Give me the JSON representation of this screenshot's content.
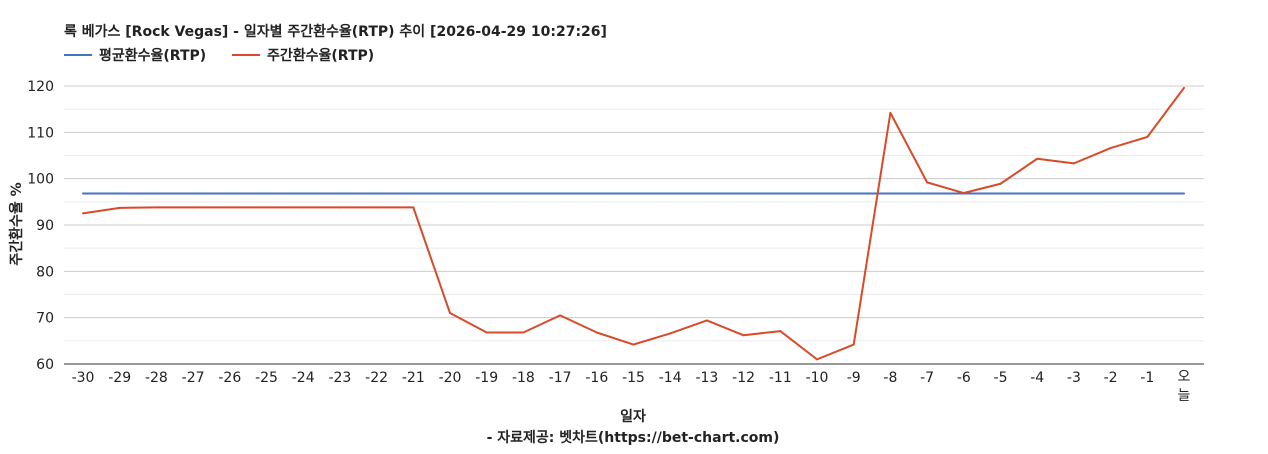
{
  "chart_data": {
    "type": "line",
    "title": "록 베가스 [Rock Vegas] - 일자별 주간환수율(RTP) 추이 [2026-04-29 10:27:26]",
    "xlabel": "일자",
    "ylabel": "주간환수율 %",
    "source": "- 자료제공: 벳차트(https://bet-chart.com)",
    "ylim": [
      60,
      120
    ],
    "yticks": [
      "60",
      "70",
      "80",
      "90",
      "100",
      "110",
      "120"
    ],
    "categories": [
      "-30",
      "-29",
      "-28",
      "-27",
      "-26",
      "-25",
      "-24",
      "-23",
      "-22",
      "-21",
      "-20",
      "-19",
      "-18",
      "-17",
      "-16",
      "-15",
      "-14",
      "-13",
      "-12",
      "-11",
      "-10",
      "-9",
      "-8",
      "-7",
      "-6",
      "-5",
      "-4",
      "-3",
      "-2",
      "-1",
      "오늘"
    ],
    "legend_position": "top-left",
    "grid": true,
    "series": [
      {
        "name": "평균환수율(RTP)",
        "color": "#4472c4",
        "values": [
          96.8,
          96.8,
          96.8,
          96.8,
          96.8,
          96.8,
          96.8,
          96.8,
          96.8,
          96.8,
          96.8,
          96.8,
          96.8,
          96.8,
          96.8,
          96.8,
          96.8,
          96.8,
          96.8,
          96.8,
          96.8,
          96.8,
          96.8,
          96.8,
          96.8,
          96.8,
          96.8,
          96.8,
          96.8,
          96.8,
          96.8
        ]
      },
      {
        "name": "주간환수율(RTP)",
        "color": "#d84a2a",
        "values": [
          92.5,
          93.7,
          93.8,
          93.8,
          93.8,
          93.8,
          93.8,
          93.8,
          93.8,
          93.8,
          71.0,
          66.8,
          66.8,
          70.5,
          66.8,
          64.2,
          66.6,
          69.4,
          66.2,
          67.1,
          61.0,
          64.2,
          114.2,
          99.2,
          96.9,
          98.9,
          104.3,
          103.3,
          106.6,
          109.0,
          119.6
        ]
      }
    ]
  }
}
